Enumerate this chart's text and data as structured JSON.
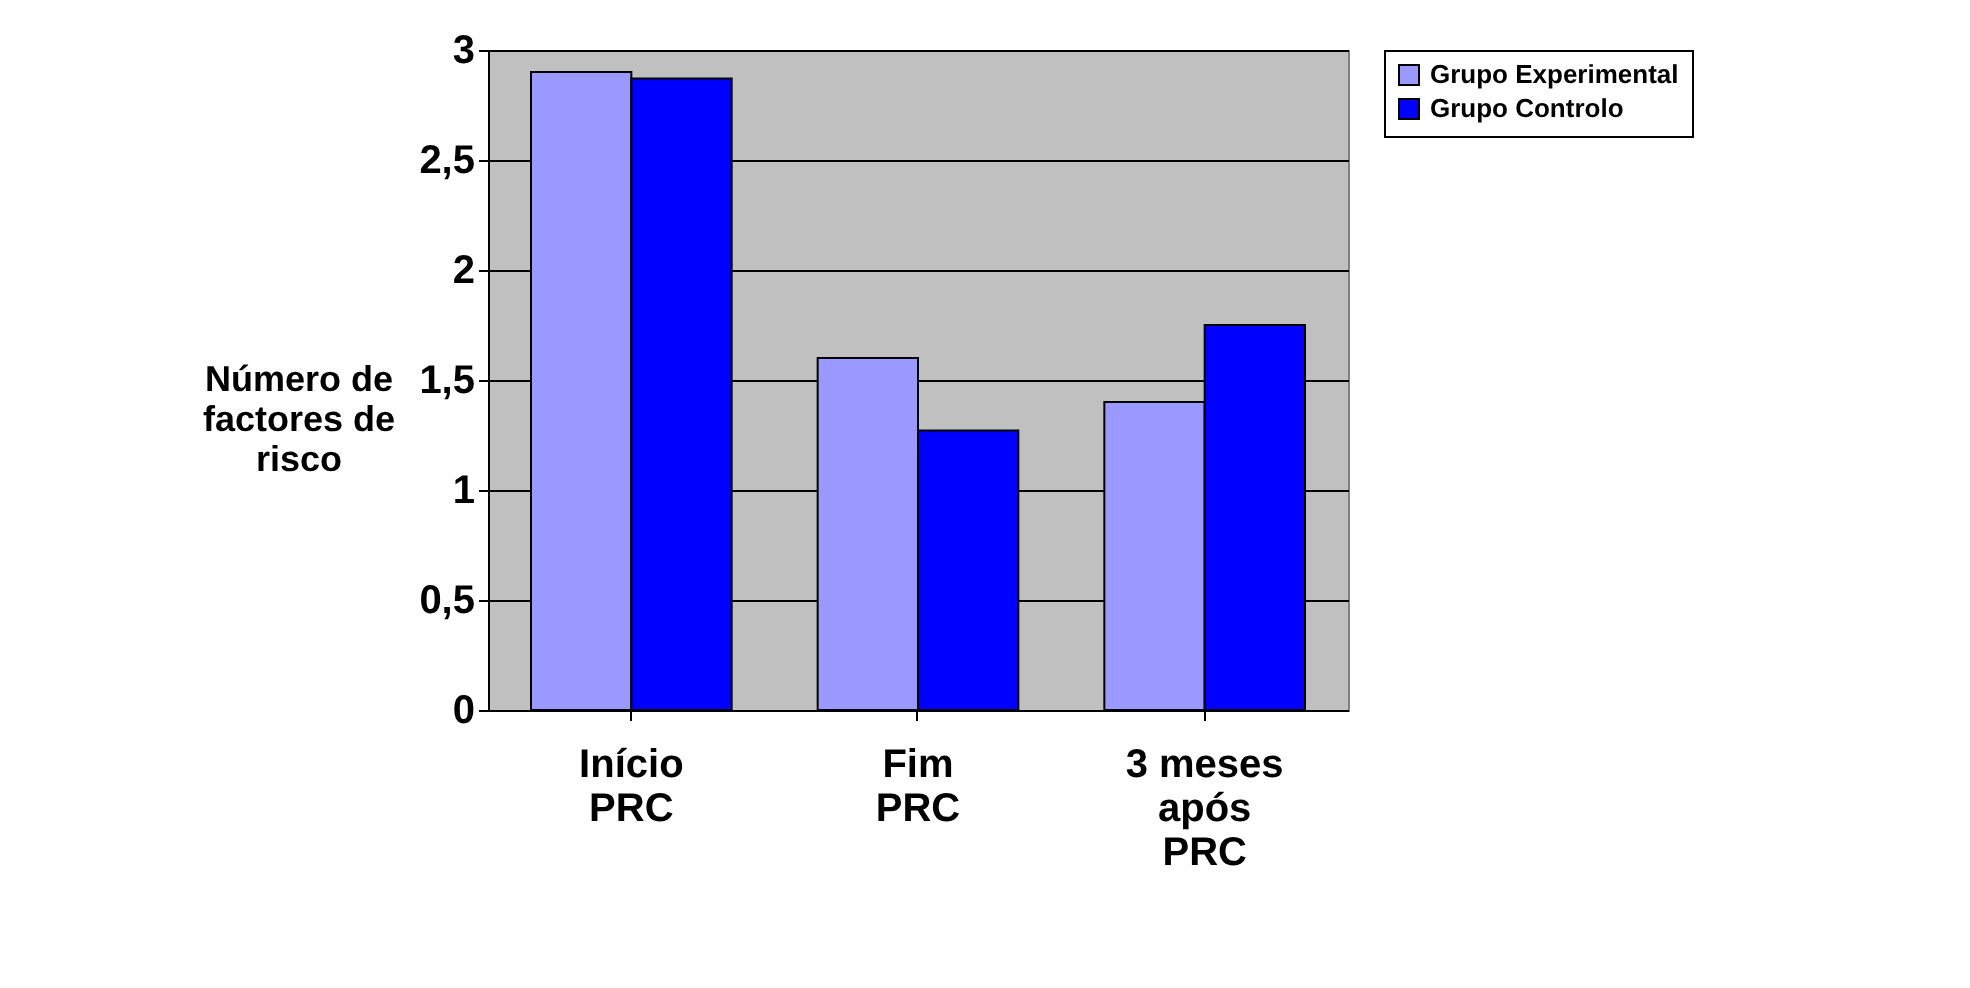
{
  "chart_data": {
    "type": "bar",
    "ylabel": "Número de\nfactores de\nrisco",
    "categories": [
      "Início\nPRC",
      "Fim\nPRC",
      "3 meses\napós\nPRC"
    ],
    "series": [
      {
        "name": "Grupo Experimental",
        "color": "#9999ff",
        "values": [
          2.9,
          1.6,
          1.4
        ]
      },
      {
        "name": "Grupo Controlo",
        "color": "#0000ff",
        "values": [
          2.87,
          1.27,
          1.75
        ]
      }
    ],
    "ylim": [
      0,
      3
    ],
    "yticks": [
      0,
      {
        "value": 0.5,
        "label": "0,5"
      },
      1,
      {
        "value": 1.5,
        "label": "1,5"
      },
      2,
      {
        "value": 2.5,
        "label": "2,5"
      },
      3
    ],
    "grid": "y",
    "legend": "right"
  }
}
